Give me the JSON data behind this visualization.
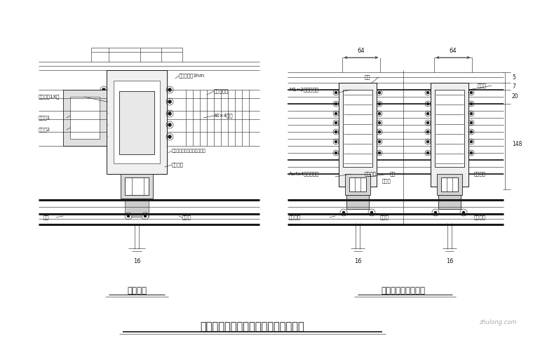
{
  "bg_color": "#ffffff",
  "title": "幕墙避雷及带形窗水平固定节点示意图",
  "left_label": "避雷装置",
  "right_label": "带形窗水平固定节点",
  "lc": "#1a1a1a",
  "lw_thin": 0.4,
  "lw_med": 0.7,
  "lw_thick": 1.2,
  "lw_vthick": 2.2,
  "fs_ann": 5.0,
  "fs_label": 8.5,
  "fs_title": 10.5,
  "fs_dim": 6.0
}
